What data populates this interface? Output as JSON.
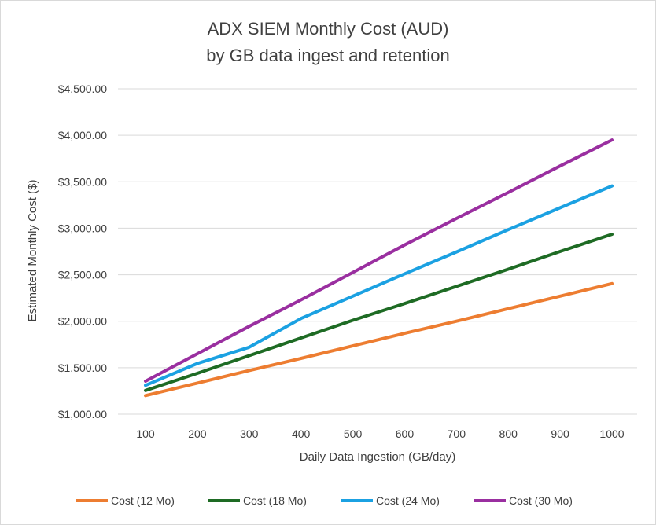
{
  "chart_data": {
    "type": "line",
    "title": "ADX SIEM Monthly Cost (AUD)",
    "subtitle": "by GB data ingest and retention",
    "xlabel": "Daily Data Ingestion (GB/day)",
    "ylabel": "Estimated Monthly Cost ($)",
    "x": [
      100,
      200,
      300,
      400,
      500,
      600,
      700,
      800,
      900,
      1000
    ],
    "y_ticks": [
      "$1,000.00",
      "$1,500.00",
      "$2,000.00",
      "$2,500.00",
      "$3,000.00",
      "$3,500.00",
      "$4,000.00",
      "$4,500.00"
    ],
    "ylim": [
      1000,
      4500
    ],
    "grid": true,
    "legend_position": "bottom",
    "series": [
      {
        "name": "Cost (12 Mo)",
        "color": "#ed7d31",
        "values": [
          1200,
          1335,
          1470,
          1600,
          1735,
          1870,
          2000,
          2135,
          2270,
          2405
        ]
      },
      {
        "name": "Cost (18 Mo)",
        "color": "#1e6b24",
        "values": [
          1255,
          1440,
          1630,
          1820,
          2010,
          2190,
          2375,
          2560,
          2750,
          2935
        ]
      },
      {
        "name": "Cost (24 Mo)",
        "color": "#1ba1e2",
        "values": [
          1310,
          1545,
          1720,
          2030,
          2270,
          2510,
          2745,
          2985,
          3220,
          3455
        ]
      },
      {
        "name": "Cost (30 Mo)",
        "color": "#9a2fa0",
        "values": [
          1355,
          1650,
          1945,
          2230,
          2525,
          2820,
          3105,
          3385,
          3670,
          3950
        ]
      }
    ]
  }
}
